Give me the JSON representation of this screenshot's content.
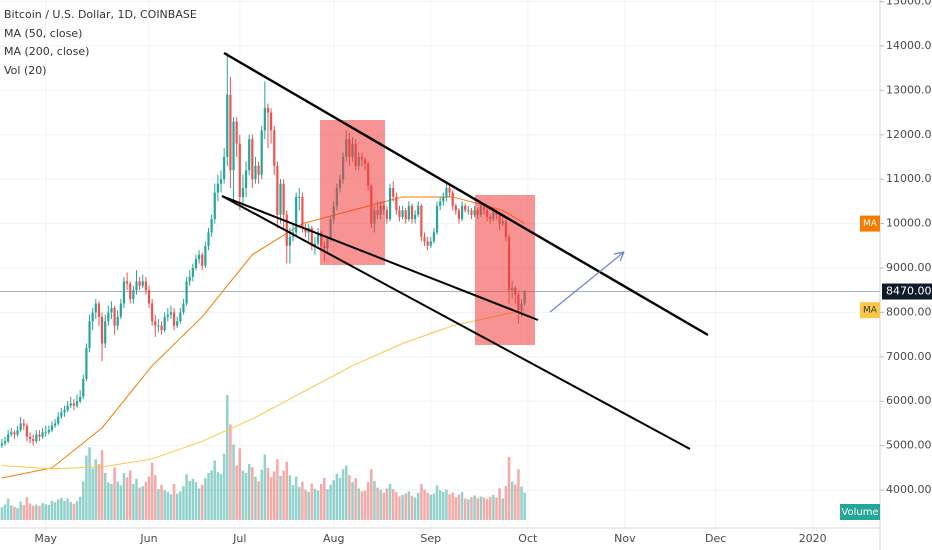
{
  "chart_data": {
    "type": "candlestick",
    "title": "Bitcoin / U.S. Dollar, 1D, COINBASE",
    "up_color": "#26a69a",
    "down_color": "#ef5350",
    "xlim": [
      -0.6,
      280.5
    ],
    "xticks": [
      {
        "value": 14,
        "label": "May"
      },
      {
        "value": 47,
        "label": "Jun"
      },
      {
        "value": 76,
        "label": "Jul"
      },
      {
        "value": 106,
        "label": "Aug"
      },
      {
        "value": 137,
        "label": "Sep"
      },
      {
        "value": 168,
        "label": "Oct"
      },
      {
        "value": 199,
        "label": "Nov"
      },
      {
        "value": 228,
        "label": "Dec"
      },
      {
        "value": 259,
        "label": "2020"
      }
    ],
    "ylim": [
      3100,
      15035
    ],
    "yticks": [
      {
        "value": 4000,
        "label": "4000.00"
      },
      {
        "value": 5000,
        "label": "5000.00"
      },
      {
        "value": 6000,
        "label": "6000.00"
      },
      {
        "value": 7000,
        "label": "7000.00"
      },
      {
        "value": 8000,
        "label": "8000.00"
      },
      {
        "value": 9000,
        "label": "9000.00"
      },
      {
        "value": 10000,
        "label": "10000.00"
      },
      {
        "value": 11000,
        "label": "11000.00"
      },
      {
        "value": 12000,
        "label": "12000.00"
      },
      {
        "value": 13000,
        "label": "13000.00"
      },
      {
        "value": 14000,
        "label": "14000.00"
      },
      {
        "value": 15000,
        "label": "15000.00"
      }
    ],
    "last_price": {
      "value": 8470,
      "label": "8470.00"
    },
    "candles": [
      [
        5000,
        5150,
        4950,
        5050
      ],
      [
        5050,
        5200,
        5000,
        5100
      ],
      [
        5100,
        5350,
        5050,
        5250
      ],
      [
        5250,
        5400,
        5200,
        5300
      ],
      [
        5300,
        5350,
        5150,
        5250
      ],
      [
        5250,
        5450,
        5200,
        5350
      ],
      [
        5350,
        5650,
        5300,
        5500
      ],
      [
        5500,
        5600,
        5350,
        5450
      ],
      [
        5450,
        5500,
        5100,
        5200
      ],
      [
        5200,
        5300,
        5050,
        5150
      ],
      [
        5150,
        5250,
        5000,
        5100
      ],
      [
        5100,
        5350,
        5050,
        5250
      ],
      [
        5250,
        5350,
        5100,
        5200
      ],
      [
        5200,
        5400,
        5150,
        5300
      ],
      [
        5300,
        5450,
        5200,
        5300
      ],
      [
        5300,
        5450,
        5250,
        5350
      ],
      [
        5350,
        5550,
        5300,
        5450
      ],
      [
        5450,
        5600,
        5400,
        5500
      ],
      [
        5500,
        5750,
        5450,
        5650
      ],
      [
        5650,
        5850,
        5600,
        5750
      ],
      [
        5750,
        5900,
        5650,
        5800
      ],
      [
        5800,
        6000,
        5750,
        5900
      ],
      [
        5900,
        6100,
        5850,
        5950
      ],
      [
        5950,
        6050,
        5800,
        5900
      ],
      [
        5900,
        6150,
        5850,
        6000
      ],
      [
        6000,
        6250,
        5950,
        6100
      ],
      [
        6100,
        6600,
        6050,
        6500
      ],
      [
        6500,
        7300,
        6450,
        7200
      ],
      [
        7200,
        7950,
        7100,
        7800
      ],
      [
        7800,
        8100,
        7600,
        8000
      ],
      [
        8000,
        8300,
        7850,
        8200
      ],
      [
        8200,
        8250,
        7700,
        7900
      ],
      [
        7900,
        8000,
        6900,
        7300
      ],
      [
        7300,
        7950,
        7200,
        7800
      ],
      [
        7800,
        8150,
        7700,
        8000
      ],
      [
        8000,
        8250,
        7850,
        8100
      ],
      [
        8100,
        8150,
        7500,
        7700
      ],
      [
        7700,
        8050,
        7600,
        7900
      ],
      [
        7900,
        8300,
        7850,
        8200
      ],
      [
        8200,
        8800,
        8100,
        8700
      ],
      [
        8700,
        8900,
        8500,
        8650
      ],
      [
        8650,
        8700,
        8200,
        8300
      ],
      [
        8300,
        8600,
        8200,
        8500
      ],
      [
        8500,
        8950,
        8400,
        8700
      ],
      [
        8700,
        8800,
        8500,
        8600
      ],
      [
        8600,
        8850,
        8550,
        8700
      ],
      [
        8700,
        8800,
        8400,
        8500
      ],
      [
        8500,
        8600,
        8100,
        8200
      ],
      [
        8200,
        8300,
        7700,
        7800
      ],
      [
        7800,
        7950,
        7450,
        7700
      ],
      [
        7700,
        7850,
        7550,
        7700
      ],
      [
        7700,
        7800,
        7500,
        7600
      ],
      [
        7600,
        8000,
        7550,
        7900
      ],
      [
        7900,
        8100,
        7800,
        7950
      ],
      [
        7950,
        8150,
        7850,
        8000
      ],
      [
        8000,
        8100,
        7600,
        7700
      ],
      [
        7700,
        7900,
        7650,
        7800
      ],
      [
        7800,
        8100,
        7750,
        8000
      ],
      [
        8000,
        8300,
        7950,
        8200
      ],
      [
        8200,
        8800,
        8150,
        8700
      ],
      [
        8700,
        8950,
        8600,
        8800
      ],
      [
        8800,
        9100,
        8700,
        9000
      ],
      [
        9000,
        9300,
        8950,
        9200
      ],
      [
        9200,
        9400,
        9100,
        9300
      ],
      [
        9300,
        9350,
        8950,
        9050
      ],
      [
        9050,
        9600,
        9000,
        9500
      ],
      [
        9500,
        9900,
        9400,
        9800
      ],
      [
        9800,
        10200,
        9700,
        10100
      ],
      [
        10100,
        10900,
        10000,
        10700
      ],
      [
        10700,
        11100,
        10500,
        10900
      ],
      [
        10900,
        11200,
        10700,
        11000
      ],
      [
        11000,
        11700,
        10900,
        11500
      ],
      [
        11500,
        13850,
        11300,
        12900
      ],
      [
        12900,
        13300,
        10800,
        11200
      ],
      [
        11200,
        12400,
        10500,
        12300
      ],
      [
        12300,
        12400,
        11500,
        11800
      ],
      [
        11800,
        12000,
        10300,
        10600
      ],
      [
        10600,
        11100,
        10400,
        10800
      ],
      [
        10800,
        11400,
        10600,
        11200
      ],
      [
        11200,
        12000,
        11100,
        11900
      ],
      [
        11900,
        12000,
        10800,
        11000
      ],
      [
        11000,
        11500,
        10900,
        11300
      ],
      [
        11300,
        11400,
        10900,
        11100
      ],
      [
        11100,
        12200,
        11000,
        12100
      ],
      [
        12100,
        13200,
        11900,
        12600
      ],
      [
        12600,
        12700,
        11700,
        12500
      ],
      [
        12500,
        12600,
        11800,
        12100
      ],
      [
        12100,
        12200,
        11100,
        11300
      ],
      [
        11300,
        11400,
        9900,
        10200
      ],
      [
        10200,
        11000,
        10000,
        10900
      ],
      [
        10900,
        11000,
        9900,
        10200
      ],
      [
        10200,
        10300,
        9100,
        9500
      ],
      [
        9500,
        9900,
        9100,
        9700
      ],
      [
        9700,
        10000,
        9600,
        9800
      ],
      [
        9800,
        10700,
        9700,
        10600
      ],
      [
        10600,
        10800,
        10300,
        10600
      ],
      [
        10600,
        10700,
        9800,
        9900
      ],
      [
        9900,
        10000,
        9700,
        9800
      ],
      [
        9800,
        10000,
        9600,
        9900
      ],
      [
        9900,
        9950,
        9400,
        9500
      ],
      [
        9500,
        9700,
        9300,
        9550
      ],
      [
        9550,
        9900,
        9500,
        9800
      ],
      [
        9800,
        9850,
        9400,
        9500
      ],
      [
        9500,
        9600,
        9150,
        9450
      ],
      [
        9450,
        9700,
        9350,
        9650
      ],
      [
        9650,
        10150,
        9600,
        10100
      ],
      [
        10100,
        10500,
        10000,
        10400
      ],
      [
        10400,
        10900,
        10300,
        10800
      ],
      [
        10800,
        11100,
        10700,
        11000
      ],
      [
        11000,
        11600,
        10900,
        11500
      ],
      [
        11500,
        12100,
        11400,
        11900
      ],
      [
        11900,
        12050,
        11300,
        11500
      ],
      [
        11500,
        11950,
        11400,
        11800
      ],
      [
        11800,
        11900,
        11200,
        11300
      ],
      [
        11300,
        11600,
        11200,
        11500
      ],
      [
        11500,
        11600,
        11300,
        11450
      ],
      [
        11450,
        11500,
        11200,
        11350
      ],
      [
        11350,
        11400,
        10750,
        10850
      ],
      [
        10850,
        10900,
        9900,
        10000
      ],
      [
        10000,
        10400,
        9800,
        10300
      ],
      [
        10300,
        10500,
        10100,
        10200
      ],
      [
        10200,
        10500,
        10100,
        10400
      ],
      [
        10400,
        10500,
        10200,
        10300
      ],
      [
        10300,
        10400,
        10000,
        10100
      ],
      [
        10100,
        10900,
        10050,
        10800
      ],
      [
        10800,
        10950,
        10500,
        10600
      ],
      [
        10600,
        10700,
        10200,
        10300
      ],
      [
        10300,
        10400,
        10050,
        10150
      ],
      [
        10150,
        10400,
        10100,
        10300
      ],
      [
        10300,
        10350,
        10000,
        10100
      ],
      [
        10100,
        10500,
        10050,
        10400
      ],
      [
        10400,
        10450,
        10000,
        10100
      ],
      [
        10100,
        10300,
        10000,
        10200
      ],
      [
        10200,
        10500,
        10150,
        10400
      ],
      [
        10400,
        10450,
        9600,
        9700
      ],
      [
        9700,
        9800,
        9500,
        9600
      ],
      [
        9600,
        9700,
        9400,
        9500
      ],
      [
        9500,
        9700,
        9450,
        9600
      ],
      [
        9600,
        9900,
        9550,
        9800
      ],
      [
        9800,
        10500,
        9750,
        10400
      ],
      [
        10400,
        10600,
        10300,
        10500
      ],
      [
        10500,
        10700,
        10400,
        10600
      ],
      [
        10600,
        10900,
        10500,
        10800
      ],
      [
        10800,
        10900,
        10600,
        10700
      ],
      [
        10700,
        10750,
        10300,
        10400
      ],
      [
        10400,
        10450,
        10200,
        10300
      ],
      [
        10300,
        10350,
        10000,
        10100
      ],
      [
        10100,
        10500,
        10050,
        10400
      ],
      [
        10400,
        10450,
        10250,
        10300
      ],
      [
        10300,
        10400,
        10200,
        10300
      ],
      [
        10300,
        10350,
        10100,
        10200
      ],
      [
        10200,
        10400,
        10150,
        10300
      ],
      [
        10300,
        10350,
        10100,
        10200
      ],
      [
        10200,
        10500,
        10150,
        10400
      ],
      [
        10400,
        10450,
        10200,
        10300
      ],
      [
        10300,
        10350,
        10050,
        10150
      ],
      [
        10150,
        10200,
        10000,
        10100
      ],
      [
        10100,
        10350,
        10050,
        10250
      ],
      [
        10250,
        10300,
        10100,
        10200
      ],
      [
        10200,
        10250,
        9850,
        10000
      ],
      [
        10000,
        10150,
        9950,
        10050
      ],
      [
        10050,
        10100,
        9600,
        9700
      ],
      [
        9700,
        9750,
        8200,
        8500
      ],
      [
        8500,
        8700,
        8300,
        8550
      ],
      [
        8550,
        8600,
        8200,
        8400
      ],
      [
        8400,
        8450,
        7750,
        8050
      ],
      [
        8050,
        8300,
        7900,
        8200
      ],
      [
        8200,
        8500,
        8150,
        8470
      ]
    ],
    "series": [
      {
        "name": "MA (50, close)",
        "tag": "MA",
        "color": "#f57c00",
        "x": [
          0,
          16,
          32,
          48,
          64,
          80,
          96,
          112,
          128,
          144,
          160,
          167
        ],
        "values": [
          4270,
          4500,
          5400,
          6800,
          7900,
          9300,
          10000,
          10300,
          10600,
          10600,
          10300,
          10000
        ]
      },
      {
        "name": "MA (200, close)",
        "tag": "MA",
        "color": "#f9c846",
        "x": [
          0,
          16,
          32,
          48,
          64,
          80,
          96,
          112,
          128,
          144,
          160,
          167
        ],
        "values": [
          4550,
          4480,
          4520,
          4700,
          5100,
          5600,
          6200,
          6800,
          7300,
          7700,
          7950,
          8050
        ]
      }
    ],
    "volume": {
      "name": "Vol (20)",
      "tag": "Volume",
      "values": [
        3500,
        4200,
        5800,
        4000,
        3600,
        3200,
        5000,
        4100,
        6200,
        4500,
        3900,
        4200,
        3800,
        4600,
        4300,
        4100,
        5200,
        4800,
        5600,
        6000,
        5200,
        5800,
        4900,
        4400,
        5100,
        6300,
        10500,
        17500,
        19800,
        14000,
        16500,
        15200,
        19000,
        12800,
        10200,
        9800,
        14300,
        10500,
        9400,
        12800,
        11600,
        13500,
        9800,
        11200,
        8800,
        9200,
        10400,
        11800,
        15600,
        12200,
        8400,
        9600,
        8100,
        7600,
        7000,
        9800,
        7200,
        7800,
        9200,
        12400,
        10600,
        11200,
        10300,
        8600,
        9600,
        11400,
        12800,
        13500,
        16200,
        13000,
        12500,
        18000,
        34000,
        26000,
        20500,
        14800,
        19500,
        13400,
        12800,
        15200,
        14400,
        11800,
        10500,
        13700,
        17800,
        14200,
        11600,
        13200,
        16500,
        12000,
        13400,
        15800,
        12200,
        9500,
        11800,
        9000,
        10400,
        8200,
        7600,
        9900,
        8500,
        8000,
        9800,
        11500,
        8400,
        9600,
        10800,
        12600,
        11400,
        13800,
        14800,
        12200,
        10300,
        11400,
        8600,
        7800,
        8000,
        10300,
        13800,
        10600,
        8800,
        8200,
        7400,
        8600,
        9800,
        8400,
        7600,
        6400,
        6800,
        7200,
        7800,
        6600,
        6100,
        7400,
        9800,
        8200,
        7400,
        6900,
        7200,
        9400,
        8100,
        7600,
        8300,
        7000,
        7500,
        6200,
        6900,
        7600,
        5800,
        5600,
        6200,
        6700,
        5900,
        6400,
        6100,
        5700,
        6300,
        6800,
        6100,
        8600,
        5900,
        9200,
        17200,
        10400,
        9600,
        13800,
        9100,
        7400
      ]
    }
  }
}
